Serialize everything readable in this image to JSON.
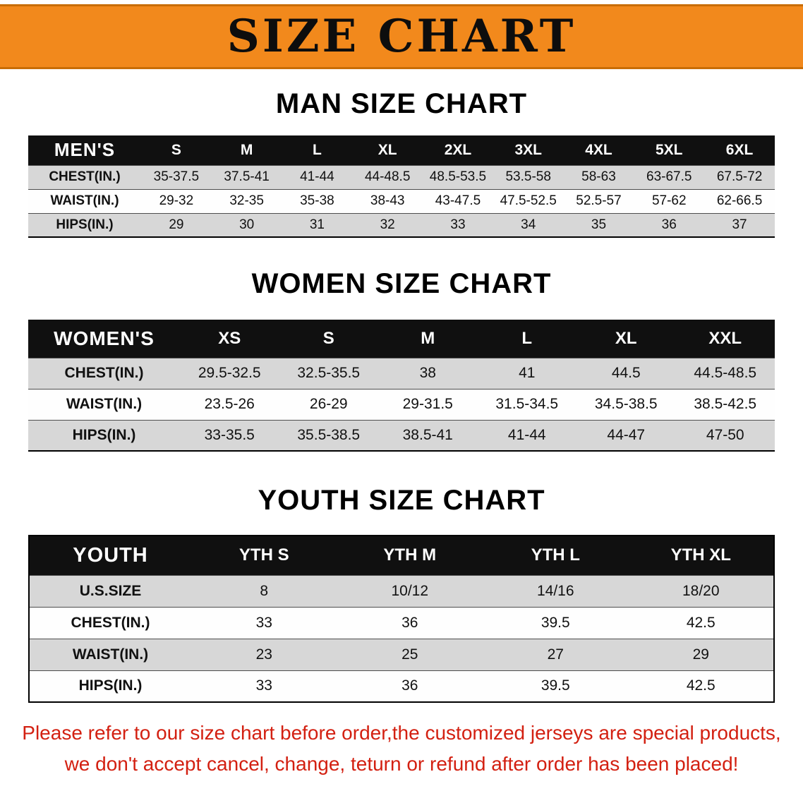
{
  "banner": {
    "title": "SIZE CHART",
    "background_color": "#F2891C"
  },
  "sections": {
    "men": {
      "heading": "MAN SIZE CHART",
      "table": {
        "header": [
          "MEN'S",
          "S",
          "M",
          "L",
          "XL",
          "2XL",
          "3XL",
          "4XL",
          "5XL",
          "6XL"
        ],
        "rows": [
          [
            "CHEST(IN.)",
            "35-37.5",
            "37.5-41",
            "41-44",
            "44-48.5",
            "48.5-53.5",
            "53.5-58",
            "58-63",
            "63-67.5",
            "67.5-72"
          ],
          [
            "WAIST(IN.)",
            "29-32",
            "32-35",
            "35-38",
            "38-43",
            "43-47.5",
            "47.5-52.5",
            "52.5-57",
            "57-62",
            "62-66.5"
          ],
          [
            "HIPS(IN.)",
            "29",
            "30",
            "31",
            "32",
            "33",
            "34",
            "35",
            "36",
            "37"
          ]
        ]
      }
    },
    "women": {
      "heading": "WOMEN SIZE CHART",
      "table": {
        "header": [
          "WOMEN'S",
          "XS",
          "S",
          "M",
          "L",
          "XL",
          "XXL"
        ],
        "rows": [
          [
            "CHEST(IN.)",
            "29.5-32.5",
            "32.5-35.5",
            "38",
            "41",
            "44.5",
            "44.5-48.5"
          ],
          [
            "WAIST(IN.)",
            "23.5-26",
            "26-29",
            "29-31.5",
            "31.5-34.5",
            "34.5-38.5",
            "38.5-42.5"
          ],
          [
            "HIPS(IN.)",
            "33-35.5",
            "35.5-38.5",
            "38.5-41",
            "41-44",
            "44-47",
            "47-50"
          ]
        ]
      }
    },
    "youth": {
      "heading": "YOUTH SIZE CHART",
      "table": {
        "header": [
          "YOUTH",
          "YTH S",
          "YTH M",
          "YTH L",
          "YTH XL"
        ],
        "rows": [
          [
            "U.S.SIZE",
            "8",
            "10/12",
            "14/16",
            "18/20"
          ],
          [
            "CHEST(IN.)",
            "33",
            "36",
            "39.5",
            "42.5"
          ],
          [
            "WAIST(IN.)",
            "23",
            "25",
            "27",
            "29"
          ],
          [
            "HIPS(IN.)",
            "33",
            "36",
            "39.5",
            "42.5"
          ]
        ]
      }
    }
  },
  "footer": {
    "line1": "Please refer to our size chart before order,the customized jerseys are special products,",
    "line2": "we don't accept cancel, change, teturn or refund after order has been placed!",
    "text_color": "#D32011"
  }
}
